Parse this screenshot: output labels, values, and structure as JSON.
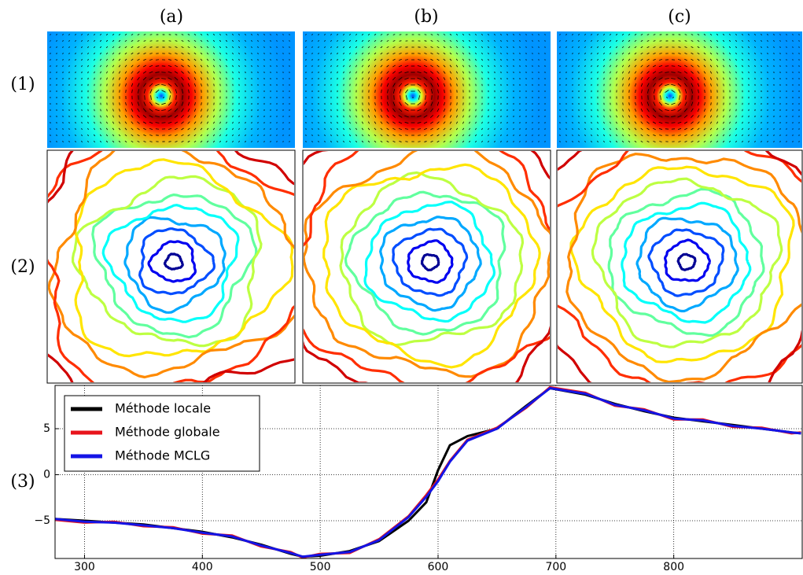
{
  "column_labels": [
    "(a)",
    "(b)",
    "(c)"
  ],
  "row_labels": [
    "(1)",
    "(2)",
    "(3)"
  ],
  "chart_data": {
    "type": "line",
    "x": [
      275,
      300,
      325,
      350,
      375,
      400,
      425,
      450,
      475,
      485,
      500,
      525,
      550,
      575,
      590,
      600,
      610,
      625,
      650,
      675,
      695,
      725,
      750,
      775,
      800,
      825,
      850,
      875,
      900,
      908
    ],
    "series": [
      {
        "name": "Méthode locale",
        "color": "#000000",
        "values": [
          -4.8,
          -5.0,
          -5.2,
          -5.4,
          -5.8,
          -6.2,
          -6.8,
          -7.6,
          -8.6,
          -8.9,
          -8.8,
          -8.3,
          -7.2,
          -5.0,
          -3.0,
          0.5,
          3.2,
          4.2,
          5.0,
          7.5,
          9.4,
          8.7,
          7.7,
          6.9,
          6.2,
          5.8,
          5.4,
          5.0,
          4.6,
          4.5
        ]
      },
      {
        "name": "Méthode globale",
        "color": "#e8141c",
        "values": [
          -4.9,
          -5.2,
          -5.1,
          -5.6,
          -5.7,
          -6.4,
          -6.6,
          -7.8,
          -8.4,
          -9.0,
          -8.6,
          -8.5,
          -7.0,
          -4.5,
          -2.2,
          -0.5,
          1.5,
          3.8,
          5.1,
          7.3,
          9.5,
          8.9,
          7.5,
          7.1,
          6.0,
          6.0,
          5.2,
          5.1,
          4.5,
          4.6
        ]
      },
      {
        "name": "Méthode MCLG",
        "color": "#1414e6",
        "values": [
          -4.8,
          -5.1,
          -5.2,
          -5.5,
          -5.8,
          -6.3,
          -6.7,
          -7.7,
          -8.5,
          -8.9,
          -8.7,
          -8.4,
          -7.1,
          -4.6,
          -2.4,
          -0.7,
          1.4,
          3.7,
          5.0,
          7.4,
          9.4,
          8.8,
          7.6,
          7.0,
          6.1,
          5.9,
          5.3,
          5.0,
          4.6,
          4.5
        ]
      }
    ],
    "xlim": [
      275,
      909
    ],
    "ylim": [
      -9.1,
      9.7
    ],
    "xticks": [
      300,
      400,
      500,
      600,
      700,
      800
    ],
    "yticks": [
      {
        "value": -5,
        "label": "−5"
      },
      0,
      5
    ],
    "grid": true,
    "legend": "upper left"
  }
}
